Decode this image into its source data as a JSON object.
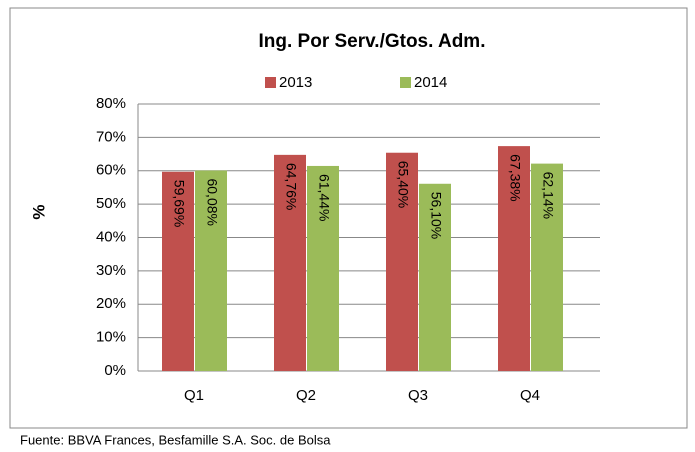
{
  "chart_data": {
    "type": "bar",
    "title": "Ing. Por Serv./Gtos. Adm.",
    "y_label": "%",
    "source": "Fuente: BBVA Frances, Besfamille S.A. Soc. de Bolsa",
    "categories": [
      "Q1",
      "Q2",
      "Q3",
      "Q4"
    ],
    "series": [
      {
        "name": "2013",
        "color": "#c0504d",
        "values": [
          59.69,
          64.76,
          65.4,
          67.38
        ],
        "value_labels": [
          "59,69%",
          "64,76%",
          "65,40%",
          "67,38%"
        ]
      },
      {
        "name": "2014",
        "color": "#9bbb59",
        "values": [
          60.08,
          61.44,
          56.1,
          62.14
        ],
        "value_labels": [
          "60,08%",
          "61,44%",
          "56,10%",
          "62,14%"
        ]
      }
    ],
    "ylim": [
      0,
      80
    ],
    "yticks": [
      {
        "value": 0,
        "label": "0%"
      },
      {
        "value": 10,
        "label": "10%"
      },
      {
        "value": 20,
        "label": "20%"
      },
      {
        "value": 30,
        "label": "30%"
      },
      {
        "value": 40,
        "label": "40%"
      },
      {
        "value": 50,
        "label": "50%"
      },
      {
        "value": 60,
        "label": "60%"
      },
      {
        "value": 70,
        "label": "70%"
      },
      {
        "value": 80,
        "label": "80%"
      }
    ],
    "grid": true
  }
}
